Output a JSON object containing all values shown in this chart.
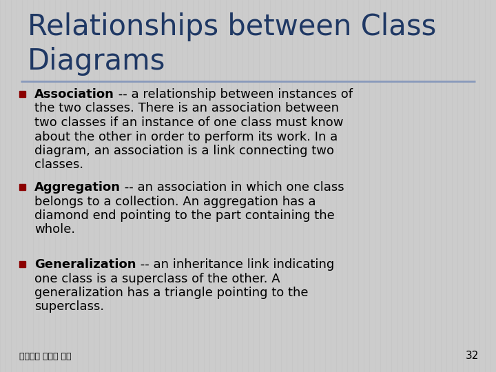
{
  "title_line1": "Relationships between Class",
  "title_line2": "Diagrams",
  "title_color": "#1F3864",
  "title_fontsize": 30,
  "background_color": "#CCCCCC",
  "divider_color": "#8899BB",
  "bullet_color": "#8B0000",
  "body_color": "#000000",
  "body_fontsize": 13.0,
  "footer_text": "交大資工 蔡文能 計概",
  "page_number": "32",
  "items": [
    {
      "bold_text": "Association",
      "rest_text": " -- a relationship between instances of\nthe two classes. There is an association between\ntwo classes if an instance of one class must know\nabout the other in order to perform its work. In a\ndiagram, an association is a link connecting two\nclasses."
    },
    {
      "bold_text": "Aggregation",
      "rest_text": " -- an association in which one class\nbelongs to a collection. An aggregation has a\ndiamond end pointing to the part containing the\nwhole."
    },
    {
      "bold_text": "Generalization",
      "rest_text": " -- an inheritance link indicating\none class is a superclass of the other. A\ngeneralization has a triangle pointing to the\nsuperclass."
    }
  ]
}
